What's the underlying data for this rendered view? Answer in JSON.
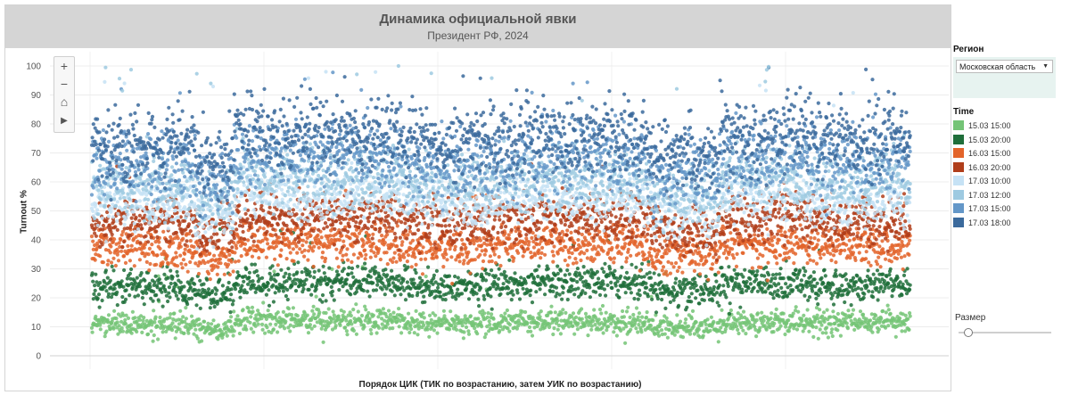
{
  "chart_data": {
    "type": "scatter",
    "title": "Динамика официальной явки",
    "subtitle": "Президент РФ, 2024",
    "xlabel": "Порядок ЦИК (ТИК по возрастанию, затем УИК по возрастанию)",
    "ylabel": "Turnout %",
    "ylim": [
      0,
      100
    ],
    "y_ticks": [
      0,
      10,
      20,
      30,
      40,
      50,
      60,
      70,
      80,
      90,
      100
    ],
    "grid": true,
    "legend_title": "Time",
    "legend_position": "right",
    "series": [
      {
        "name": "15.03 15:00",
        "color": "#74c476",
        "baseline": 11
      },
      {
        "name": "15.03 20:00",
        "color": "#1f6e3a",
        "baseline": 24
      },
      {
        "name": "16.03 15:00",
        "color": "#e3642a",
        "baseline": 37
      },
      {
        "name": "16.03 20:00",
        "color": "#b03e1b",
        "baseline": 46
      },
      {
        "name": "17.03 10:00",
        "color": "#c6e2f5",
        "baseline": 53
      },
      {
        "name": "17.03 12:00",
        "color": "#9ecae1",
        "baseline": 59
      },
      {
        "name": "17.03 15:00",
        "color": "#6497c8",
        "baseline": 66
      },
      {
        "name": "17.03 18:00",
        "color": "#3b6a9c",
        "baseline": 73
      }
    ],
    "x_count": 3000,
    "segment_offsets": [
      {
        "from": 0,
        "to": 380,
        "offset": 0
      },
      {
        "from": 380,
        "to": 520,
        "offset": -5
      },
      {
        "from": 520,
        "to": 1150,
        "offset": 3
      },
      {
        "from": 1150,
        "to": 1500,
        "offset": 0
      },
      {
        "from": 1500,
        "to": 2050,
        "offset": 2
      },
      {
        "from": 2050,
        "to": 2300,
        "offset": -3
      },
      {
        "from": 2300,
        "to": 2650,
        "offset": 2
      },
      {
        "from": 2650,
        "to": 3000,
        "offset": 1
      }
    ]
  },
  "filters": {
    "region_label": "Регион",
    "region_value": "Московская область",
    "size_label": "Размер",
    "size_value": 0.1
  },
  "zoom": {
    "plus": "+",
    "minus": "−",
    "home": "⌂",
    "play": "▶"
  }
}
